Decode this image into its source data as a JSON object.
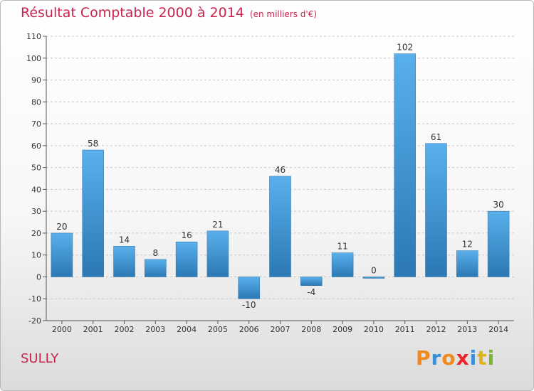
{
  "header": {
    "title": "Résultat Comptable 2000 à 2014",
    "subtitle": "(en milliers d'€)"
  },
  "footer": {
    "commune": "SULLY",
    "logo_text": "Proxiti"
  },
  "colors": {
    "title": "#c8244f",
    "bar_top": "#5ab0ec",
    "bar_bottom": "#2b78b3",
    "grid": "#c8c8c8",
    "axis": "#555555",
    "logo": [
      "#f08a1e",
      "#3c8fd6",
      "#f08a1e",
      "#e8262b",
      "#3c8fd6",
      "#e0b21a",
      "#7bb52a"
    ]
  },
  "chart_data": {
    "type": "bar",
    "title": "Résultat Comptable 2000 à 2014",
    "subtitle": "(en milliers d'€)",
    "xlabel": "",
    "ylabel": "",
    "ylim": [
      -20,
      110
    ],
    "yticks": [
      -20,
      -10,
      0,
      10,
      20,
      30,
      40,
      50,
      60,
      70,
      80,
      90,
      100,
      110
    ],
    "grid": "horizontal-dashed",
    "categories": [
      "2000",
      "2001",
      "2002",
      "2003",
      "2004",
      "2005",
      "2006",
      "2007",
      "2008",
      "2009",
      "2010",
      "2011",
      "2012",
      "2013",
      "2014"
    ],
    "values": [
      20,
      58,
      14,
      8,
      16,
      21,
      -10,
      46,
      -4,
      11,
      0,
      102,
      61,
      12,
      30
    ],
    "labels": [
      "20",
      "58",
      "14",
      "8",
      "16",
      "21",
      "-10",
      "46",
      "-4",
      "11",
      "0",
      "102",
      "61",
      "12",
      "30"
    ]
  }
}
